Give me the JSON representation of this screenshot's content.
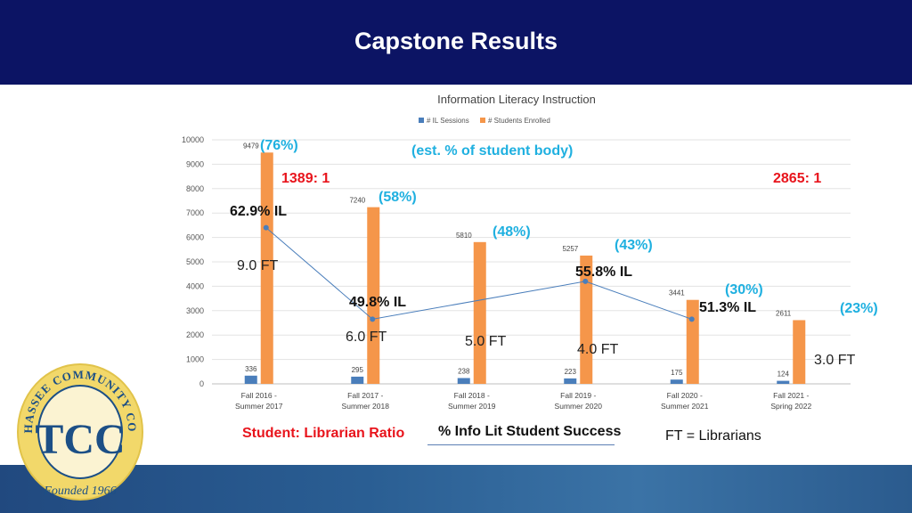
{
  "header": {
    "title": "Capstone Results"
  },
  "chart_data": {
    "type": "bar",
    "title": "Information Literacy Instruction",
    "categories": [
      "Fall 2016 - Summer 2017",
      "Fall 2017 - Summer 2018",
      "Fall 2018 - Summer 2019",
      "Fall 2019 - Summer 2020",
      "Fall 2020 - Summer 2021",
      "Fall 2021 - Spring 2022"
    ],
    "category_lines": [
      [
        "Fall 2016 -",
        "Summer 2017"
      ],
      [
        "Fall 2017 -",
        "Summer 2018"
      ],
      [
        "Fall 2018 -",
        "Summer 2019"
      ],
      [
        "Fall 2019 -",
        "Summer 2020"
      ],
      [
        "Fall 2020 -",
        "Summer 2021"
      ],
      [
        "Fall 2021 -",
        "Spring 2022"
      ]
    ],
    "series": [
      {
        "name": "# IL Sessions",
        "color": "#4a7ebb",
        "values": [
          336,
          295,
          238,
          223,
          175,
          124
        ]
      },
      {
        "name": "# Students Enrolled",
        "color": "#f5964a",
        "values": [
          9479,
          7240,
          5810,
          5257,
          3441,
          2611
        ]
      }
    ],
    "ylim": [
      0,
      10000
    ],
    "yticks": [
      0,
      1000,
      2000,
      3000,
      4000,
      5000,
      6000,
      7000,
      8000,
      9000,
      10000
    ],
    "line_overlay": {
      "name": "% Info Lit Student Success",
      "color": "#4a7ebb",
      "plotted_values": [
        6400,
        2650,
        4200,
        2650
      ]
    },
    "grid": true,
    "legend": "top-center"
  },
  "annotations": {
    "pct_body": [
      "(76%)",
      "(58%)",
      "(48%)",
      "(43%)",
      "(30%)",
      "(23%)"
    ],
    "est_label": "(est. % of student body)",
    "ratio_left": "1389: 1",
    "ratio_right": "2865: 1",
    "il_labels": [
      "62.9% IL",
      "49.8% IL",
      "55.8% IL",
      "51.3% IL"
    ],
    "ft_labels": [
      "9.0 FT",
      "6.0 FT",
      "5.0 FT",
      "4.0 FT",
      "3.0 FT"
    ]
  },
  "footer": {
    "ratio_legend": "Student: Librarian Ratio",
    "success_legend": "% Info Lit Student Success",
    "ft_legend": "FT = Librarians"
  },
  "logo": {
    "text": "TALLAHASSEE COMMUNITY COLLEGE",
    "founded": "Founded 1966",
    "monogram": "TCC"
  },
  "colors": {
    "header_bg": "#0c1464",
    "bar_sessions": "#4a7ebb",
    "bar_students": "#f5964a",
    "accent_blue": "#1fb0e0",
    "accent_red": "#e8141c"
  }
}
